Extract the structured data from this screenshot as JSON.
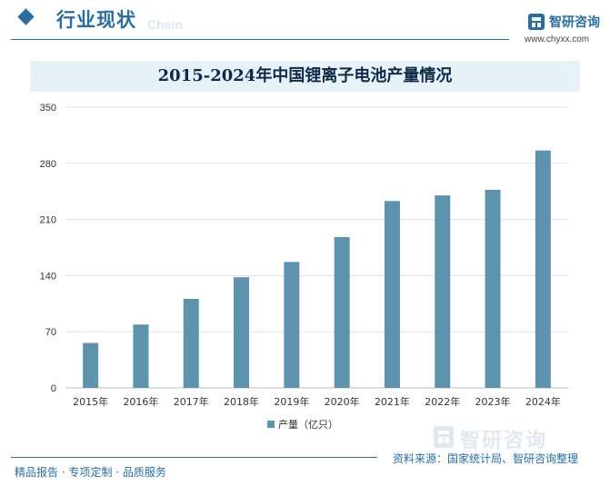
{
  "header": {
    "title": "行业现状",
    "ghost_text": "Chain",
    "brand_name": "智研咨询",
    "brand_url": "www.chyxx.com",
    "accent_color": "#2b6d9e"
  },
  "chart_data": {
    "type": "bar",
    "title": "2015-2024年中国锂离子电池产量情况",
    "categories": [
      "2015年",
      "2016年",
      "2017年",
      "2018年",
      "2019年",
      "2020年",
      "2021年",
      "2022年",
      "2023年",
      "2024年"
    ],
    "series": [
      {
        "name": "产量（亿只）",
        "values": [
          56,
          79,
          111,
          138,
          157,
          188,
          233,
          240,
          247,
          296
        ],
        "color": "#5e93ad"
      }
    ],
    "ylim": [
      0,
      350
    ],
    "yticks": [
      0,
      70,
      140,
      210,
      280,
      350
    ],
    "grid": true,
    "legend_position": "bottom"
  },
  "footer": {
    "left_text": "精品报告 · 专项定制 · 品质服务",
    "source_text": "资料来源：国家统计局、智研咨询整理",
    "logo_text": "智研咨询"
  }
}
